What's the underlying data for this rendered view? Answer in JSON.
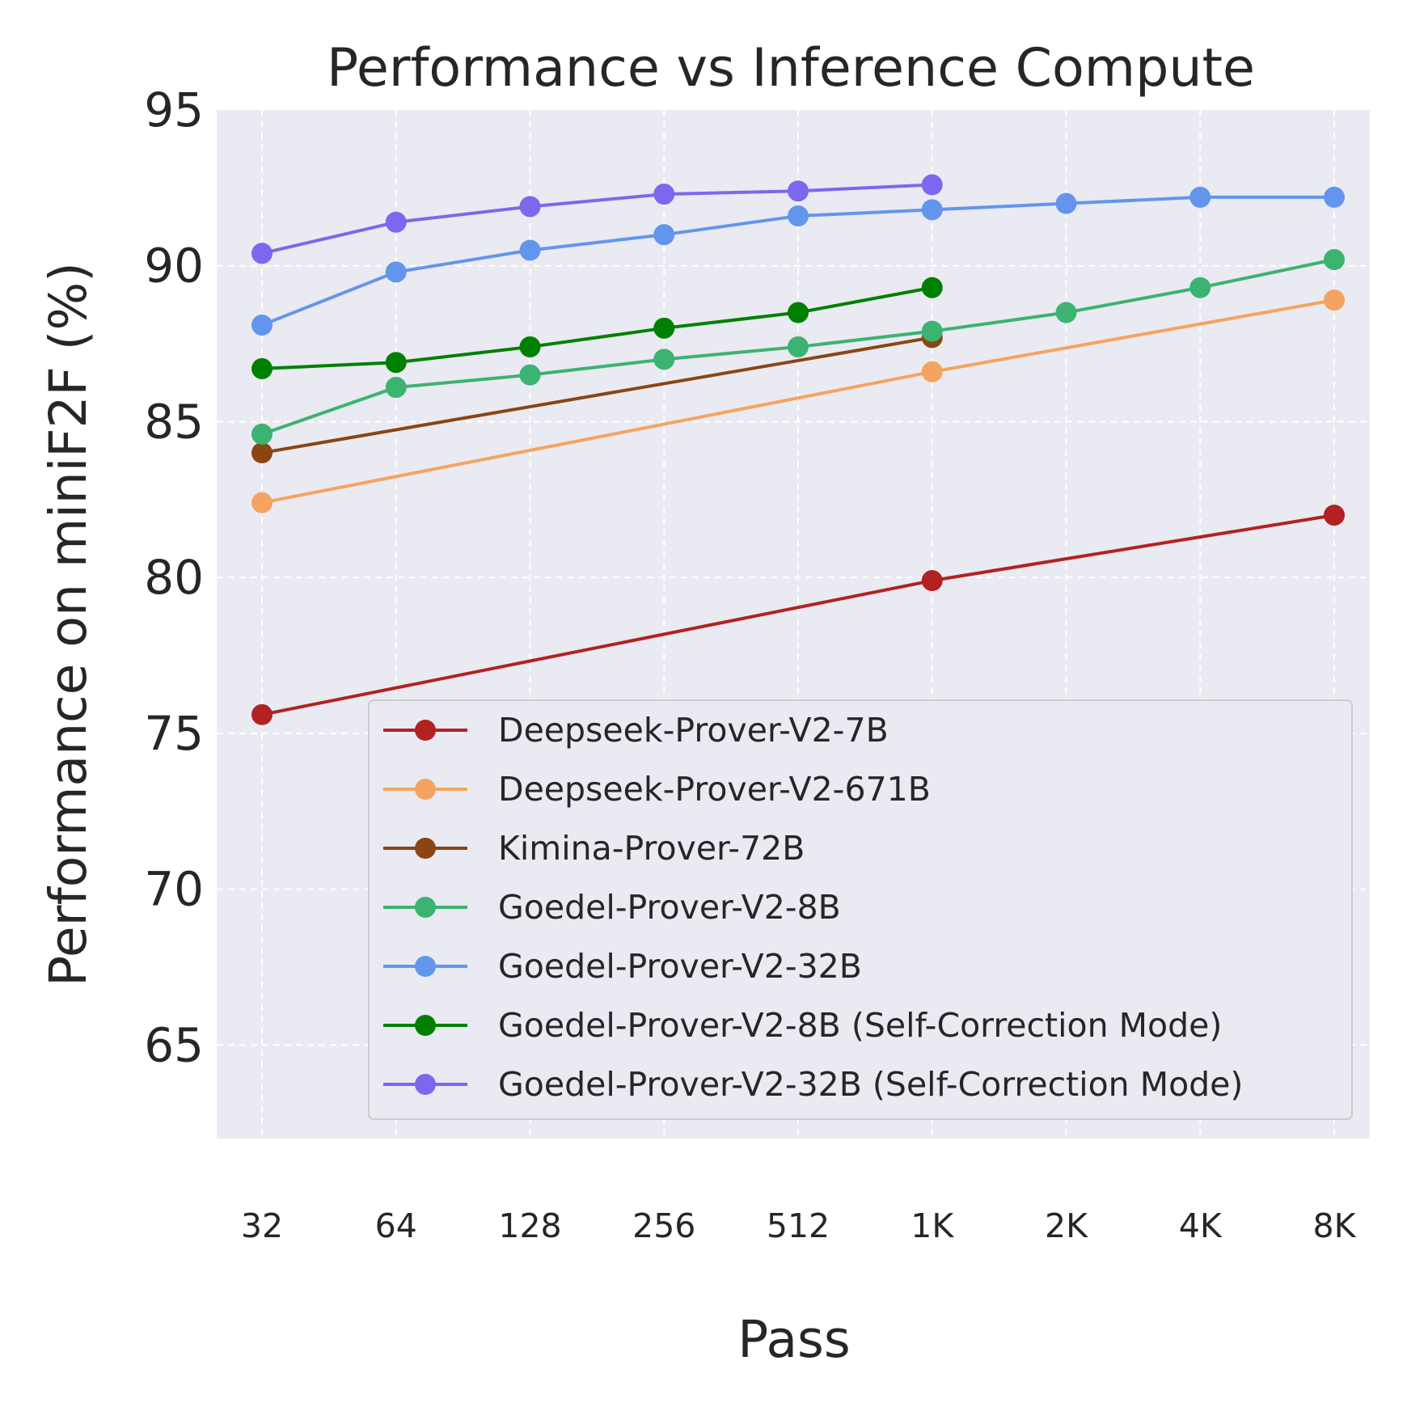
{
  "chart_data": {
    "type": "line",
    "title": "Performance vs Inference Compute",
    "xlabel": "Pass",
    "ylabel": "Performance on miniF2F (%)",
    "x": [
      "32",
      "64",
      "128",
      "256",
      "512",
      "1K",
      "2K",
      "4K",
      "8K"
    ],
    "ylim": [
      62,
      95
    ],
    "yticks": [
      65,
      70,
      75,
      80,
      85,
      90,
      95
    ],
    "grid": true,
    "legend_position": "lower-right",
    "series": [
      {
        "name": "Deepseek-Prover-V2-7B",
        "color": "#b22222",
        "points": [
          [
            0,
            75.6
          ],
          [
            5,
            79.9
          ],
          [
            8,
            82.0
          ]
        ]
      },
      {
        "name": "Deepseek-Prover-V2-671B",
        "color": "#f4a460",
        "points": [
          [
            0,
            82.4
          ],
          [
            5,
            86.6
          ],
          [
            8,
            88.9
          ]
        ]
      },
      {
        "name": "Kimina-Prover-72B",
        "color": "#8b4513",
        "points": [
          [
            0,
            84.0
          ],
          [
            5,
            87.7
          ]
        ]
      },
      {
        "name": "Goedel-Prover-V2-8B",
        "color": "#3cb371",
        "points": [
          [
            0,
            84.6
          ],
          [
            1,
            86.1
          ],
          [
            2,
            86.5
          ],
          [
            3,
            87.0
          ],
          [
            4,
            87.4
          ],
          [
            5,
            87.9
          ],
          [
            6,
            88.5
          ],
          [
            7,
            89.3
          ],
          [
            8,
            90.2
          ]
        ]
      },
      {
        "name": "Goedel-Prover-V2-32B",
        "color": "#6495ed",
        "points": [
          [
            0,
            88.1
          ],
          [
            1,
            89.8
          ],
          [
            2,
            90.5
          ],
          [
            3,
            91.0
          ],
          [
            4,
            91.6
          ],
          [
            5,
            91.8
          ],
          [
            6,
            92.0
          ],
          [
            7,
            92.2
          ],
          [
            8,
            92.2
          ]
        ]
      },
      {
        "name": "Goedel-Prover-V2-8B (Self-Correction Mode)",
        "color": "#008000",
        "points": [
          [
            0,
            86.7
          ],
          [
            1,
            86.9
          ],
          [
            2,
            87.4
          ],
          [
            3,
            88.0
          ],
          [
            4,
            88.5
          ],
          [
            5,
            89.3
          ]
        ]
      },
      {
        "name": "Goedel-Prover-V2-32B (Self-Correction Mode)",
        "color": "#7b68ee",
        "points": [
          [
            0,
            90.4
          ],
          [
            1,
            91.4
          ],
          [
            2,
            91.9
          ],
          [
            3,
            92.3
          ],
          [
            4,
            92.4
          ],
          [
            5,
            92.6
          ]
        ]
      }
    ]
  }
}
